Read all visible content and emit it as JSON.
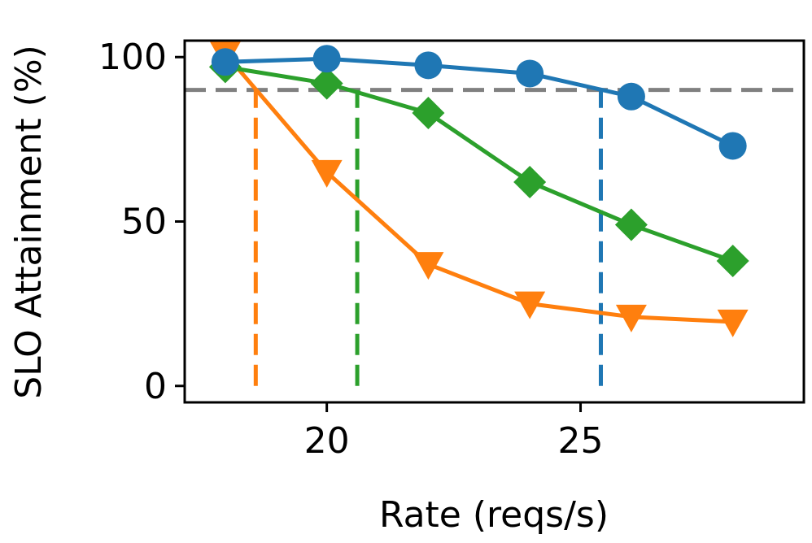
{
  "chart_data": {
    "type": "line",
    "title": "",
    "xlabel": "Rate (reqs/s)",
    "ylabel": "SLO Attainment (%)",
    "xlim": [
      17.2,
      29.4
    ],
    "ylim": [
      -5,
      105
    ],
    "xticks": [
      20,
      25
    ],
    "yticks": [
      0,
      50,
      100
    ],
    "xtick_labels": [
      "20",
      "25"
    ],
    "ytick_labels": [
      "0",
      "50",
      "100"
    ],
    "grid": false,
    "legend": "none",
    "reference_lines": [
      {
        "orientation": "horizontal",
        "y": 90,
        "color": "#808080",
        "style": "dashed"
      },
      {
        "orientation": "vertical",
        "x": 18.6,
        "y_from": 0,
        "y_to": 90,
        "color": "#ff7f0e",
        "style": "dashed"
      },
      {
        "orientation": "vertical",
        "x": 20.6,
        "y_from": 0,
        "y_to": 90,
        "color": "#2ca02c",
        "style": "dashed"
      },
      {
        "orientation": "vertical",
        "x": 25.4,
        "y_from": 0,
        "y_to": 90,
        "color": "#1f77b4",
        "style": "dashed"
      }
    ],
    "series": [
      {
        "name": "orange",
        "color": "#ff7f0e",
        "marker": "triangle-down",
        "x": [
          18,
          20,
          22,
          24,
          26,
          28
        ],
        "values": [
          101,
          65,
          37,
          25,
          21,
          19.5
        ]
      },
      {
        "name": "green",
        "color": "#2ca02c",
        "marker": "diamond",
        "x": [
          18,
          20,
          22,
          24,
          26,
          28
        ],
        "values": [
          97,
          92,
          83,
          62,
          49,
          38
        ]
      },
      {
        "name": "blue",
        "color": "#1f77b4",
        "marker": "circle",
        "x": [
          18,
          20,
          22,
          24,
          26,
          28
        ],
        "values": [
          98.5,
          99.5,
          97.5,
          95,
          88,
          73
        ]
      }
    ]
  }
}
